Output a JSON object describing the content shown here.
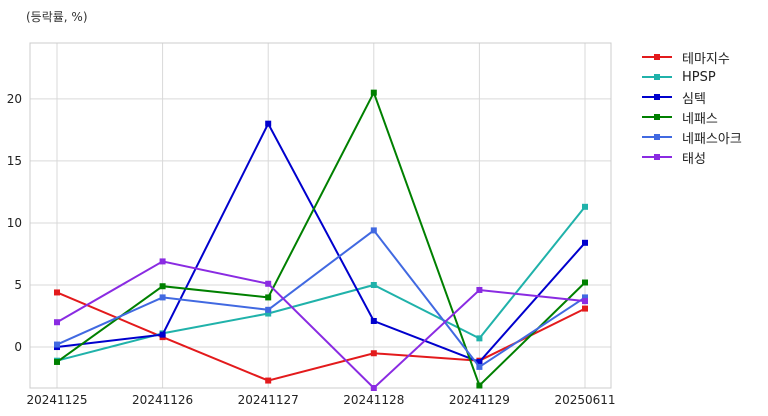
{
  "chart_data": {
    "type": "line",
    "ylabel": "(등락률, %)",
    "categories": [
      "20241125",
      "20241126",
      "20241127",
      "20241128",
      "20241129",
      "20250611"
    ],
    "ylim": [
      -3.3,
      24.5
    ],
    "yticks": [
      0,
      5,
      10,
      15,
      20
    ],
    "grid": true,
    "legend_position": "right-outside-top",
    "series": [
      {
        "name": "테마지수",
        "color": "#e31a1c",
        "values": [
          4.4,
          0.8,
          -2.7,
          -0.5,
          -1.1,
          3.1
        ]
      },
      {
        "name": "HPSP",
        "color": "#20b2aa",
        "values": [
          -1.1,
          1.1,
          2.7,
          5.0,
          0.7,
          11.3
        ]
      },
      {
        "name": "심텍",
        "color": "#0000cd",
        "values": [
          0.0,
          1.0,
          18.0,
          2.1,
          -1.2,
          8.4
        ]
      },
      {
        "name": "네패스",
        "color": "#008000",
        "values": [
          -1.2,
          4.9,
          4.0,
          20.5,
          -3.1,
          5.2
        ]
      },
      {
        "name": "네패스아크",
        "color": "#4169e1",
        "values": [
          0.2,
          4.0,
          3.0,
          9.4,
          -1.6,
          4.0
        ]
      },
      {
        "name": "태성",
        "color": "#8a2be2",
        "values": [
          2.0,
          6.9,
          5.1,
          -3.3,
          4.6,
          3.7
        ]
      }
    ]
  }
}
